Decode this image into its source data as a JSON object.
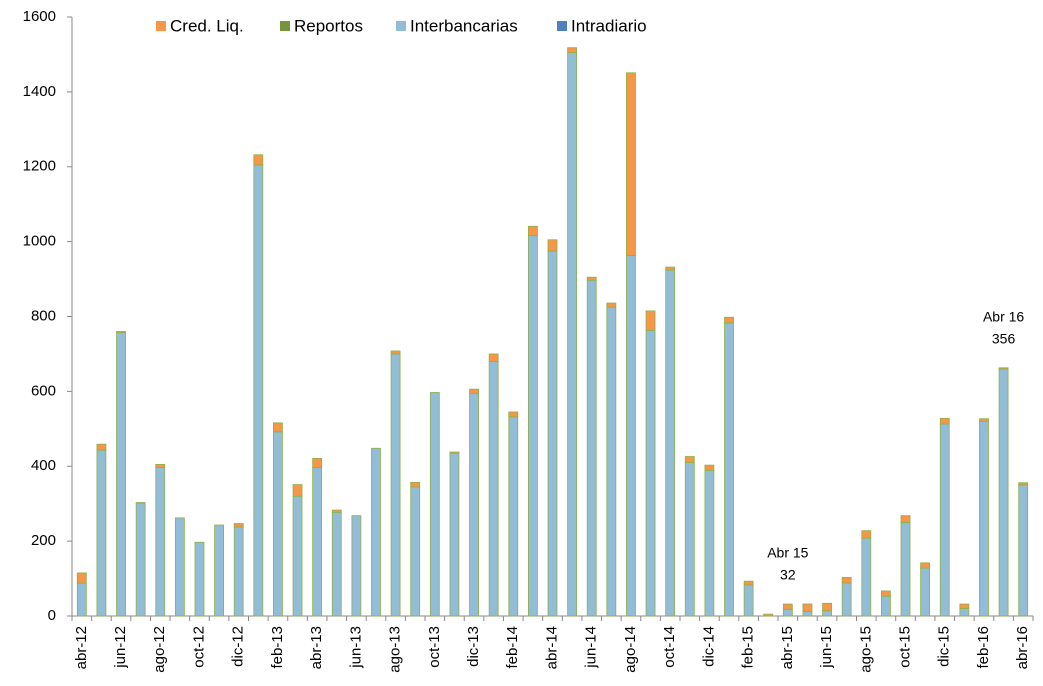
{
  "chart_data": {
    "type": "bar",
    "stacked": true,
    "categories": [
      "abr-12",
      null,
      "jun-12",
      null,
      "ago-12",
      null,
      "oct-12",
      null,
      "dic-12",
      null,
      "feb-13",
      null,
      "abr-13",
      null,
      "jun-13",
      null,
      "ago-13",
      null,
      "oct-13",
      null,
      "dic-13",
      null,
      "feb-14",
      null,
      "abr-14",
      null,
      "jun-14",
      null,
      "ago-14",
      null,
      "oct-14",
      null,
      "dic-14",
      null,
      "feb-15",
      null,
      "abr-15",
      null,
      "jun-15",
      null,
      "ago-15",
      null,
      "oct-15",
      null,
      "dic-15",
      null,
      "feb-16",
      null,
      "abr-16"
    ],
    "series": [
      {
        "name": "Cred. Liq.",
        "color": "#f79646",
        "values": [
          27,
          16,
          3,
          1,
          8,
          0,
          0,
          0,
          9,
          27,
          24,
          31,
          24,
          6,
          0,
          0,
          8,
          12,
          0,
          3,
          11,
          20,
          13,
          25,
          30,
          13,
          8,
          11,
          488,
          52,
          8,
          16,
          14,
          15,
          10,
          5,
          14,
          20,
          20,
          15,
          20,
          14,
          18,
          14,
          15,
          12,
          7,
          3,
          6
        ]
      },
      {
        "name": "Reportos",
        "color": "#77933c",
        "values": [
          0,
          0,
          0,
          0,
          0,
          0,
          0,
          0,
          0,
          0,
          0,
          0,
          0,
          0,
          0,
          0,
          0,
          0,
          0,
          0,
          0,
          0,
          0,
          0,
          0,
          0,
          0,
          0,
          0,
          0,
          0,
          0,
          0,
          0,
          0,
          0,
          0,
          0,
          0,
          0,
          0,
          0,
          0,
          0,
          0,
          0,
          0,
          0,
          0
        ]
      },
      {
        "name": "Interbancarias",
        "color": "#93bcd6",
        "values": [
          88,
          443,
          757,
          302,
          397,
          262,
          197,
          243,
          238,
          1205,
          492,
          320,
          397,
          277,
          268,
          448,
          700,
          345,
          597,
          435,
          595,
          680,
          532,
          1016,
          975,
          1505,
          897,
          825,
          963,
          763,
          924,
          410,
          389,
          783,
          83,
          0,
          18,
          12,
          14,
          88,
          208,
          53,
          250,
          128,
          513,
          20,
          520,
          660,
          350
        ]
      },
      {
        "name": "Intradiario",
        "color": "#4f81bd",
        "values": [
          0,
          0,
          0,
          0,
          0,
          0,
          0,
          0,
          0,
          0,
          0,
          0,
          0,
          0,
          0,
          0,
          0,
          0,
          0,
          0,
          0,
          0,
          0,
          0,
          0,
          0,
          0,
          0,
          0,
          0,
          0,
          0,
          0,
          0,
          0,
          0,
          0,
          0,
          0,
          0,
          0,
          0,
          0,
          0,
          0,
          0,
          0,
          0,
          0
        ]
      }
    ],
    "ylim": [
      0,
      1600
    ],
    "yticks": [
      0,
      200,
      400,
      600,
      800,
      1000,
      1200,
      1400,
      1600
    ],
    "grid": false,
    "annotations": [
      {
        "label": "Abr 15",
        "value": 32
      },
      {
        "label": "Abr 16",
        "value": 356
      }
    ]
  }
}
